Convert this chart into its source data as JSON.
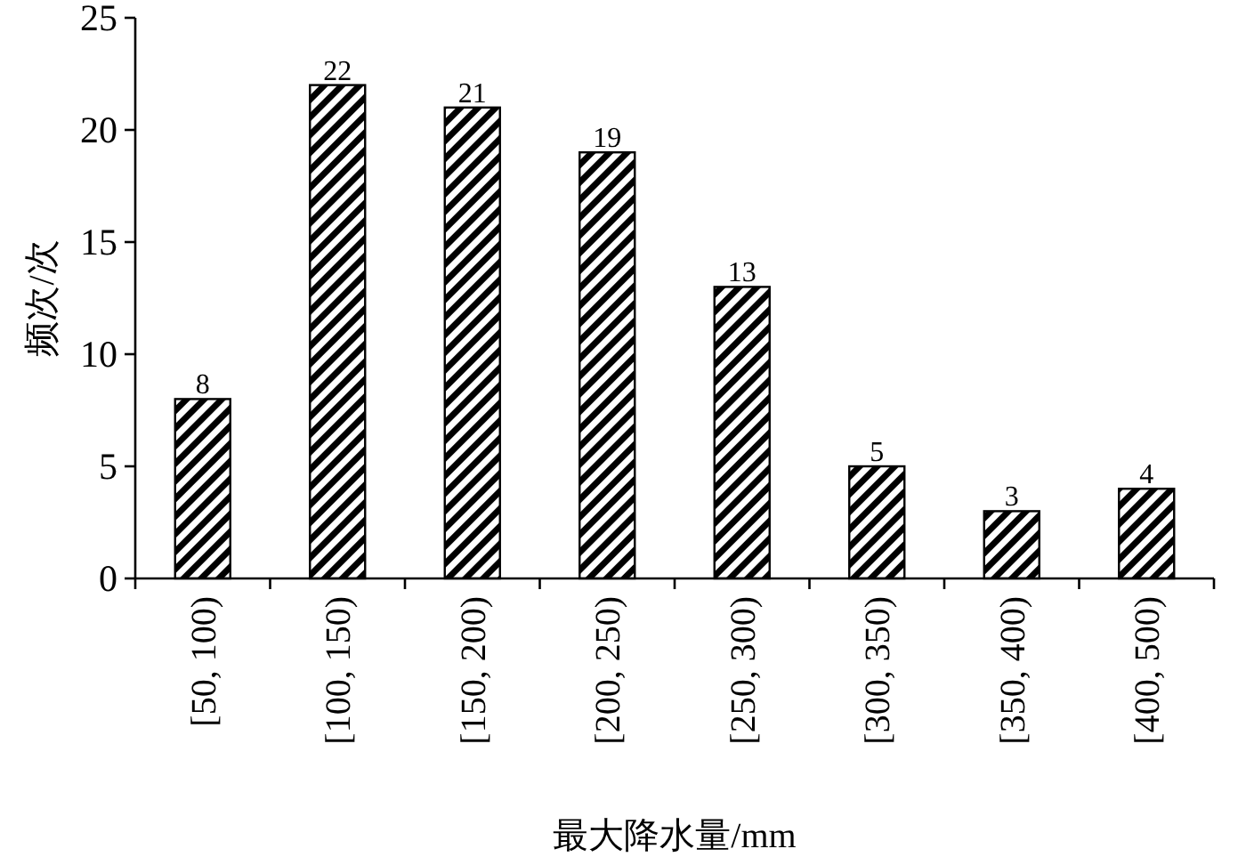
{
  "chart_data": {
    "type": "bar",
    "xlabel": "最大降水量/mm",
    "ylabel": "频次/次",
    "categories": [
      "[50, 100)",
      "[100, 150)",
      "[150, 200)",
      "[200, 250)",
      "[250, 300)",
      "[300, 350)",
      "[350, 400)",
      "[400, 500)"
    ],
    "values": [
      8,
      22,
      21,
      19,
      13,
      5,
      3,
      4
    ],
    "color": "#000000",
    "ylim": [
      0,
      25
    ],
    "yticks": [
      0,
      5,
      10,
      15,
      20,
      25
    ],
    "data_labels": true,
    "grid": false
  }
}
